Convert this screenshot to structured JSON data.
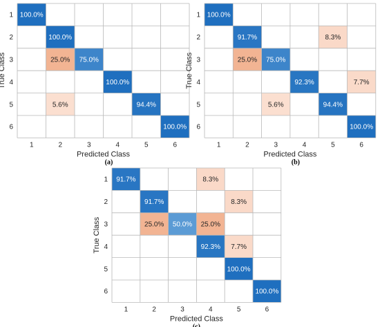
{
  "chart_data": [
    {
      "type": "heatmap",
      "panel_label": "(a)",
      "xlabel": "Predicted Class",
      "ylabel": "True Class",
      "x_categories": [
        "1",
        "2",
        "3",
        "4",
        "5",
        "6"
      ],
      "y_categories": [
        "1",
        "2",
        "3",
        "4",
        "5",
        "6"
      ],
      "cells": [
        {
          "row": "1",
          "col": "1",
          "value": 100.0,
          "label": "100.0%"
        },
        {
          "row": "2",
          "col": "2",
          "value": 100.0,
          "label": "100.0%"
        },
        {
          "row": "3",
          "col": "2",
          "value": 25.0,
          "label": "25.0%"
        },
        {
          "row": "3",
          "col": "3",
          "value": 75.0,
          "label": "75.0%"
        },
        {
          "row": "4",
          "col": "4",
          "value": 100.0,
          "label": "100.0%"
        },
        {
          "row": "5",
          "col": "2",
          "value": 5.6,
          "label": "5.6%"
        },
        {
          "row": "5",
          "col": "5",
          "value": 94.4,
          "label": "94.4%"
        },
        {
          "row": "6",
          "col": "6",
          "value": 100.0,
          "label": "100.0%"
        }
      ]
    },
    {
      "type": "heatmap",
      "panel_label": "(b)",
      "xlabel": "Predicted Class",
      "ylabel": "True Class",
      "x_categories": [
        "1",
        "2",
        "3",
        "4",
        "5",
        "6"
      ],
      "y_categories": [
        "1",
        "2",
        "3",
        "4",
        "5",
        "6"
      ],
      "cells": [
        {
          "row": "1",
          "col": "1",
          "value": 100.0,
          "label": "100.0%"
        },
        {
          "row": "2",
          "col": "2",
          "value": 91.7,
          "label": "91.7%"
        },
        {
          "row": "2",
          "col": "5",
          "value": 8.3,
          "label": "8.3%"
        },
        {
          "row": "3",
          "col": "2",
          "value": 25.0,
          "label": "25.0%"
        },
        {
          "row": "3",
          "col": "3",
          "value": 75.0,
          "label": "75.0%"
        },
        {
          "row": "4",
          "col": "4",
          "value": 92.3,
          "label": "92.3%"
        },
        {
          "row": "4",
          "col": "6",
          "value": 7.7,
          "label": "7.7%"
        },
        {
          "row": "5",
          "col": "3",
          "value": 5.6,
          "label": "5.6%"
        },
        {
          "row": "5",
          "col": "5",
          "value": 94.4,
          "label": "94.4%"
        },
        {
          "row": "6",
          "col": "6",
          "value": 100.0,
          "label": "100.0%"
        }
      ]
    },
    {
      "type": "heatmap",
      "panel_label": "(c)",
      "xlabel": "Predicted Class",
      "ylabel": "True Class",
      "x_categories": [
        "1",
        "2",
        "3",
        "4",
        "5",
        "6"
      ],
      "y_categories": [
        "1",
        "2",
        "3",
        "4",
        "5",
        "6"
      ],
      "cells": [
        {
          "row": "1",
          "col": "1",
          "value": 91.7,
          "label": "91.7%"
        },
        {
          "row": "1",
          "col": "4",
          "value": 8.3,
          "label": "8.3%"
        },
        {
          "row": "2",
          "col": "2",
          "value": 91.7,
          "label": "91.7%"
        },
        {
          "row": "2",
          "col": "5",
          "value": 8.3,
          "label": "8.3%"
        },
        {
          "row": "3",
          "col": "2",
          "value": 25.0,
          "label": "25.0%"
        },
        {
          "row": "3",
          "col": "3",
          "value": 50.0,
          "label": "50.0%"
        },
        {
          "row": "3",
          "col": "4",
          "value": 25.0,
          "label": "25.0%"
        },
        {
          "row": "4",
          "col": "4",
          "value": 92.3,
          "label": "92.3%"
        },
        {
          "row": "4",
          "col": "5",
          "value": 7.7,
          "label": "7.7%"
        },
        {
          "row": "5",
          "col": "5",
          "value": 100.0,
          "label": "100.0%"
        },
        {
          "row": "6",
          "col": "6",
          "value": 100.0,
          "label": "100.0%"
        }
      ]
    }
  ],
  "colors": {
    "diagonal_high": "#1f6fbf",
    "diagonal_mid": "#5b9bd5",
    "offdiag_high": "#f2b493",
    "offdiag_low": "#fbe0d2",
    "grid": "#b8b8b8",
    "text_dark": "#262626",
    "text_light": "#ffffff"
  }
}
